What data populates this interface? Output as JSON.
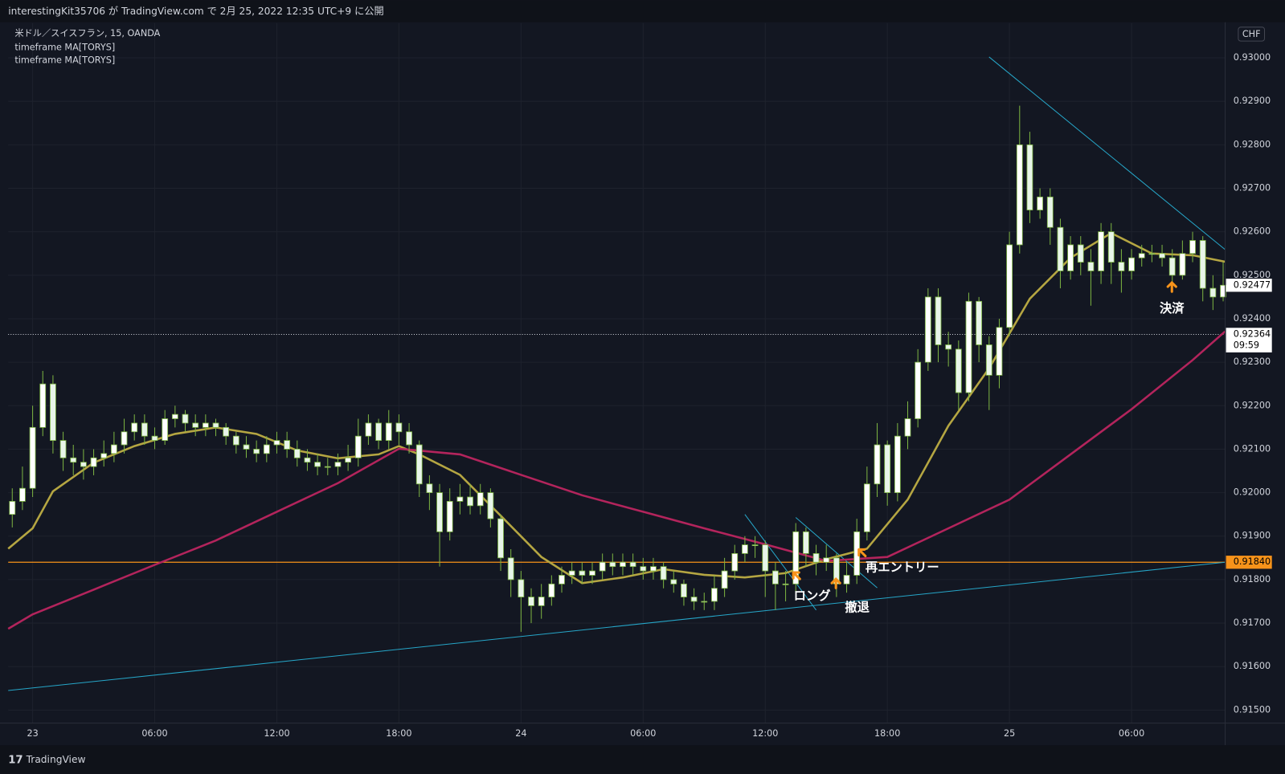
{
  "page": {
    "header": "interestingKit35706 が TradingView.com で 2月 25, 2022 12:35 UTC+9 に公開",
    "brand": "TradingView",
    "currency": "CHF"
  },
  "chart_data": {
    "type": "candlestick",
    "title": "米ドル／スイスフラン, 15, OANDA",
    "candle_colors": {
      "up": "#ffffff",
      "down": "#e8f5e9",
      "wick": "#7cb342"
    },
    "x": [
      -1,
      -0.5,
      0,
      0.5,
      1,
      1.5,
      2,
      2.5,
      3,
      3.5,
      4,
      4.5,
      5,
      5.5,
      6,
      6.5,
      7,
      7.5,
      8,
      8.5,
      9,
      9.5,
      10,
      10.5,
      11,
      11.5,
      12,
      12.5,
      13,
      13.5,
      14,
      14.5,
      15,
      15.5,
      16,
      16.5,
      17,
      17.5,
      18,
      18.5,
      19,
      19.5,
      20,
      20.5,
      21,
      21.5,
      22,
      22.5,
      23,
      23.5,
      24,
      24.5,
      25,
      25.5,
      26,
      26.5,
      27,
      27.5,
      28,
      28.5,
      29,
      29.5,
      30,
      30.5,
      31,
      31.5,
      32,
      32.5,
      33,
      33.5,
      34,
      34.5,
      35,
      35.5,
      36,
      36.5,
      37,
      37.5,
      38,
      38.5,
      39,
      39.5,
      40,
      40.5,
      41,
      41.5,
      42,
      42.5,
      43,
      43.5,
      44,
      44.5,
      45,
      45.5,
      46,
      46.5,
      47,
      47.5,
      48,
      48.5,
      49,
      49.5,
      50,
      50.5,
      51,
      51.5,
      52,
      52.5,
      53,
      53.5,
      54,
      54.5,
      55,
      55.5,
      56,
      56.5,
      57,
      57.5,
      58,
      58.5
    ],
    "open": [
      0.9195,
      0.9198,
      0.9201,
      0.9215,
      0.9225,
      0.9212,
      0.9208,
      0.9207,
      0.9206,
      0.9208,
      0.9209,
      0.9211,
      0.9214,
      0.9216,
      0.9213,
      0.9212,
      0.9217,
      0.9218,
      0.9216,
      0.9215,
      0.9216,
      0.9215,
      0.9213,
      0.9211,
      0.921,
      0.9209,
      0.9211,
      0.9212,
      0.921,
      0.9208,
      0.9207,
      0.9206,
      0.9206,
      0.9207,
      0.9208,
      0.9213,
      0.9216,
      0.9212,
      0.9216,
      0.9214,
      0.9211,
      0.9202,
      0.92,
      0.9191,
      0.9198,
      0.9199,
      0.9197,
      0.92,
      0.9194,
      0.9185,
      0.918,
      0.9176,
      0.9174,
      0.9176,
      0.9179,
      0.9181,
      0.9182,
      0.9181,
      0.9182,
      0.9184,
      0.9183,
      0.9184,
      0.9183,
      0.9182,
      0.9183,
      0.918,
      0.9179,
      0.9176,
      0.9175,
      0.9175,
      0.9178,
      0.9182,
      0.9186,
      0.9188,
      0.9188,
      0.9182,
      0.9179,
      0.9179,
      0.9191,
      0.9186,
      0.9184,
      0.9185,
      0.9179,
      0.9181,
      0.9191,
      0.9202,
      0.9211,
      0.92,
      0.9213,
      0.9217,
      0.923,
      0.9245,
      0.9234,
      0.9233,
      0.9223,
      0.9244,
      0.9234,
      0.9227,
      0.9238,
      0.9257,
      0.928,
      0.9265,
      0.9268,
      0.9261,
      0.9251,
      0.9257,
      0.9253,
      0.9251,
      0.926,
      0.9253,
      0.9251,
      0.9254,
      0.9255,
      0.9255,
      0.9254,
      0.925,
      0.9255,
      0.9258,
      0.9247,
      0.9245
    ],
    "high": [
      0.9201,
      0.9206,
      0.922,
      0.9228,
      0.9227,
      0.9214,
      0.9211,
      0.921,
      0.921,
      0.9212,
      0.9214,
      0.9217,
      0.9218,
      0.9218,
      0.9215,
      0.9219,
      0.922,
      0.9219,
      0.9218,
      0.9218,
      0.9217,
      0.9216,
      0.9214,
      0.9213,
      0.9212,
      0.9213,
      0.9214,
      0.9214,
      0.9212,
      0.921,
      0.9209,
      0.9208,
      0.9209,
      0.9211,
      0.9217,
      0.9218,
      0.9217,
      0.9219,
      0.9218,
      0.9216,
      0.9212,
      0.9204,
      0.9202,
      0.9201,
      0.9202,
      0.9202,
      0.9202,
      0.9201,
      0.9195,
      0.9187,
      0.9182,
      0.9178,
      0.9179,
      0.9181,
      0.9183,
      0.9184,
      0.9184,
      0.9184,
      0.9186,
      0.9186,
      0.9186,
      0.9186,
      0.9185,
      0.9185,
      0.9184,
      0.9182,
      0.918,
      0.9178,
      0.9177,
      0.9181,
      0.9185,
      0.9188,
      0.919,
      0.919,
      0.9189,
      0.9184,
      0.9182,
      0.9193,
      0.9192,
      0.9188,
      0.9188,
      0.9186,
      0.9184,
      0.9194,
      0.9206,
      0.9216,
      0.9212,
      0.9216,
      0.9221,
      0.9233,
      0.9247,
      0.9247,
      0.9237,
      0.9235,
      0.9246,
      0.9245,
      0.9236,
      0.924,
      0.926,
      0.9289,
      0.9283,
      0.927,
      0.927,
      0.9263,
      0.9259,
      0.9259,
      0.9256,
      0.9262,
      0.9262,
      0.9256,
      0.9256,
      0.9257,
      0.9257,
      0.9257,
      0.9256,
      0.9258,
      0.926,
      0.9259,
      0.925,
      0.9253
    ],
    "low": [
      0.9192,
      0.9196,
      0.9199,
      0.9213,
      0.9209,
      0.9205,
      0.9204,
      0.9203,
      0.9204,
      0.9206,
      0.9207,
      0.9209,
      0.9212,
      0.9211,
      0.921,
      0.9211,
      0.9215,
      0.9214,
      0.9213,
      0.9213,
      0.9213,
      0.9211,
      0.9209,
      0.9208,
      0.9207,
      0.9207,
      0.9209,
      0.9208,
      0.9206,
      0.9205,
      0.9204,
      0.9204,
      0.9204,
      0.9205,
      0.9206,
      0.9211,
      0.921,
      0.921,
      0.9211,
      0.9209,
      0.9199,
      0.9196,
      0.9183,
      0.9189,
      0.9195,
      0.9195,
      0.9195,
      0.9192,
      0.9182,
      0.9176,
      0.9168,
      0.917,
      0.9171,
      0.9174,
      0.9177,
      0.9179,
      0.9179,
      0.9179,
      0.918,
      0.9181,
      0.9181,
      0.9181,
      0.918,
      0.918,
      0.9178,
      0.9177,
      0.9174,
      0.9173,
      0.9173,
      0.9173,
      0.9176,
      0.918,
      0.9184,
      0.9185,
      0.9176,
      0.9173,
      0.9175,
      0.9177,
      0.9183,
      0.9181,
      0.9182,
      0.9176,
      0.9177,
      0.9179,
      0.9189,
      0.9199,
      0.9197,
      0.9198,
      0.921,
      0.9215,
      0.9228,
      0.923,
      0.9229,
      0.9219,
      0.9221,
      0.923,
      0.9219,
      0.9224,
      0.9236,
      0.9255,
      0.9262,
      0.9263,
      0.9257,
      0.9247,
      0.9249,
      0.925,
      0.9243,
      0.9248,
      0.9248,
      0.9246,
      0.9249,
      0.9252,
      0.9253,
      0.9252,
      0.9248,
      0.9249,
      0.9253,
      0.9244,
      0.9242,
      0.9244
    ],
    "close": [
      0.9198,
      0.9201,
      0.9215,
      0.9225,
      0.9212,
      0.9208,
      0.9207,
      0.9206,
      0.9208,
      0.9209,
      0.9211,
      0.9214,
      0.9216,
      0.9213,
      0.9212,
      0.9217,
      0.9218,
      0.9216,
      0.9215,
      0.9216,
      0.9215,
      0.9213,
      0.9211,
      0.921,
      0.9209,
      0.9211,
      0.9212,
      0.921,
      0.9208,
      0.9207,
      0.9206,
      0.9206,
      0.9207,
      0.9208,
      0.9213,
      0.9216,
      0.9212,
      0.9216,
      0.9214,
      0.9211,
      0.9202,
      0.92,
      0.9191,
      0.9198,
      0.9199,
      0.9197,
      0.92,
      0.9194,
      0.9185,
      0.918,
      0.9176,
      0.9174,
      0.9176,
      0.9179,
      0.9181,
      0.9182,
      0.9181,
      0.9182,
      0.9184,
      0.9183,
      0.9184,
      0.9183,
      0.9182,
      0.9183,
      0.918,
      0.9179,
      0.9176,
      0.9175,
      0.9175,
      0.9178,
      0.9182,
      0.9186,
      0.9188,
      0.9188,
      0.9182,
      0.9179,
      0.9179,
      0.9191,
      0.9186,
      0.9184,
      0.9185,
      0.9179,
      0.9181,
      0.9191,
      0.9202,
      0.9211,
      0.92,
      0.9213,
      0.9217,
      0.923,
      0.9245,
      0.9234,
      0.9233,
      0.9223,
      0.9244,
      0.9234,
      0.9227,
      0.9238,
      0.9257,
      0.928,
      0.9265,
      0.9268,
      0.9261,
      0.9251,
      0.9257,
      0.9253,
      0.9251,
      0.926,
      0.9253,
      0.9251,
      0.9254,
      0.9255,
      0.9255,
      0.9254,
      0.925,
      0.9255,
      0.9258,
      0.9247,
      0.9245,
      0.92477
    ],
    "series": [
      {
        "name": "timeframe MA[TORYS]",
        "color": "#b5a642",
        "x": [
          -1.2,
          0,
          1,
          3,
          5,
          7,
          9,
          11,
          13,
          15,
          17,
          18,
          19,
          21,
          23,
          25,
          27,
          29,
          31,
          33,
          35,
          37,
          39,
          41,
          43,
          45,
          47,
          49,
          51,
          53,
          55,
          57,
          58.6
        ],
        "values": [
          0.91871,
          0.91918,
          0.92003,
          0.92069,
          0.92107,
          0.92135,
          0.9215,
          0.92135,
          0.92097,
          0.92079,
          0.92088,
          0.92107,
          0.92088,
          0.92041,
          0.91947,
          0.91852,
          0.91792,
          0.91805,
          0.91824,
          0.91811,
          0.91805,
          0.91815,
          0.91847,
          0.91871,
          0.91984,
          0.92154,
          0.92286,
          0.92446,
          0.9254,
          0.92597,
          0.9255,
          0.92546,
          0.92531
        ]
      },
      {
        "name": "timeframe MA[TORYS]",
        "color": "#b3245c",
        "x": [
          -1.2,
          0,
          3,
          6,
          9,
          12,
          15,
          18,
          21,
          24,
          27,
          30,
          33,
          36,
          39,
          42,
          45,
          48,
          51,
          54,
          57,
          58.6
        ],
        "values": [
          0.91687,
          0.9172,
          0.91777,
          0.91834,
          0.9189,
          0.91956,
          0.92022,
          0.92101,
          0.92088,
          0.92041,
          0.91994,
          0.91956,
          0.91918,
          0.91881,
          0.91843,
          0.91852,
          0.91918,
          0.91984,
          0.92088,
          0.92192,
          0.92305,
          0.92371
        ]
      }
    ],
    "trendlines": [
      {
        "color": "#26a6c8",
        "x": [
          -1.2,
          58.6
        ],
        "values": [
          0.91545,
          0.9184
        ]
      },
      {
        "color": "#26a6c8",
        "x": [
          47,
          58.6
        ],
        "values": [
          0.93002,
          0.92559
        ]
      },
      {
        "color": "#26a6c8",
        "x": [
          35,
          38.5
        ],
        "values": [
          0.9195,
          0.9173
        ]
      },
      {
        "color": "#26a6c8",
        "x": [
          37.5,
          41.5
        ],
        "values": [
          0.91943,
          0.91781
        ]
      }
    ],
    "hlines": [
      {
        "value": 0.9184,
        "label": "0.91840",
        "color": "#f7931a"
      }
    ],
    "countdown": {
      "value": 0.92364,
      "label": "0.92364",
      "timer": "09:59"
    },
    "last_price": {
      "value": 0.92477,
      "label": "0.92477"
    },
    "annotations": [
      "ロング",
      "撤退",
      "再エントリー",
      "決済"
    ],
    "xlim": [
      -1.2,
      58.6
    ],
    "xticks": [
      {
        "value": 0,
        "label": "23"
      },
      {
        "value": 6,
        "label": "06:00"
      },
      {
        "value": 12,
        "label": "12:00"
      },
      {
        "value": 18,
        "label": "18:00"
      },
      {
        "value": 24,
        "label": "24"
      },
      {
        "value": 30,
        "label": "06:00"
      },
      {
        "value": 36,
        "label": "12:00"
      },
      {
        "value": 42,
        "label": "18:00"
      },
      {
        "value": 48,
        "label": "25"
      },
      {
        "value": 54,
        "label": "06:00"
      }
    ],
    "ylim": [
      0.9147,
      0.9308
    ],
    "yticks": [
      {
        "value": 0.915,
        "label": "0.91500"
      },
      {
        "value": 0.916,
        "label": "0.91600"
      },
      {
        "value": 0.917,
        "label": "0.91700"
      },
      {
        "value": 0.918,
        "label": "0.91800"
      },
      {
        "value": 0.919,
        "label": "0.91900"
      },
      {
        "value": 0.92,
        "label": "0.92000"
      },
      {
        "value": 0.921,
        "label": "0.92100"
      },
      {
        "value": 0.922,
        "label": "0.92200"
      },
      {
        "value": 0.923,
        "label": "0.92300"
      },
      {
        "value": 0.924,
        "label": "0.92400"
      },
      {
        "value": 0.925,
        "label": "0.92500"
      },
      {
        "value": 0.926,
        "label": "0.92600"
      },
      {
        "value": 0.927,
        "label": "0.92700"
      },
      {
        "value": 0.928,
        "label": "0.92800"
      },
      {
        "value": 0.929,
        "label": "0.92900"
      },
      {
        "value": 0.93,
        "label": "0.93000"
      }
    ],
    "grid": true
  }
}
